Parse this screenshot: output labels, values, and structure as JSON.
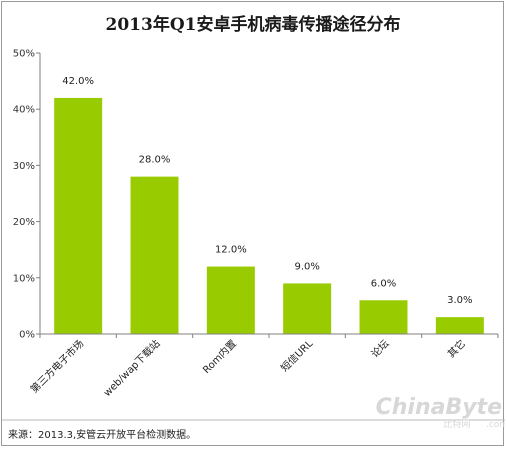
{
  "chart_data": {
    "type": "bar",
    "title": "2013年Q1安卓手机病毒传播途径分布",
    "categories": [
      "第三方电子市场",
      "web/wap下载站",
      "Rom内置",
      "短信URL",
      "论坛",
      "其它"
    ],
    "values": [
      42.0,
      28.0,
      12.0,
      9.0,
      6.0,
      3.0
    ],
    "data_labels": [
      "42.0%",
      "28.0%",
      "12.0%",
      "9.0%",
      "6.0%",
      "3.0%"
    ],
    "yticks": [
      "0%",
      "10%",
      "20%",
      "30%",
      "40%",
      "50%"
    ],
    "ylim": [
      0,
      50
    ],
    "xlabel": "",
    "ylabel": "",
    "grid": false,
    "bar_color": "#99cc00",
    "source": "来源：2013.3,安管云开放平台检测数据。"
  },
  "watermark": {
    "brand": "ChinaByte",
    "cn": "比特网",
    "domain": ".com"
  }
}
